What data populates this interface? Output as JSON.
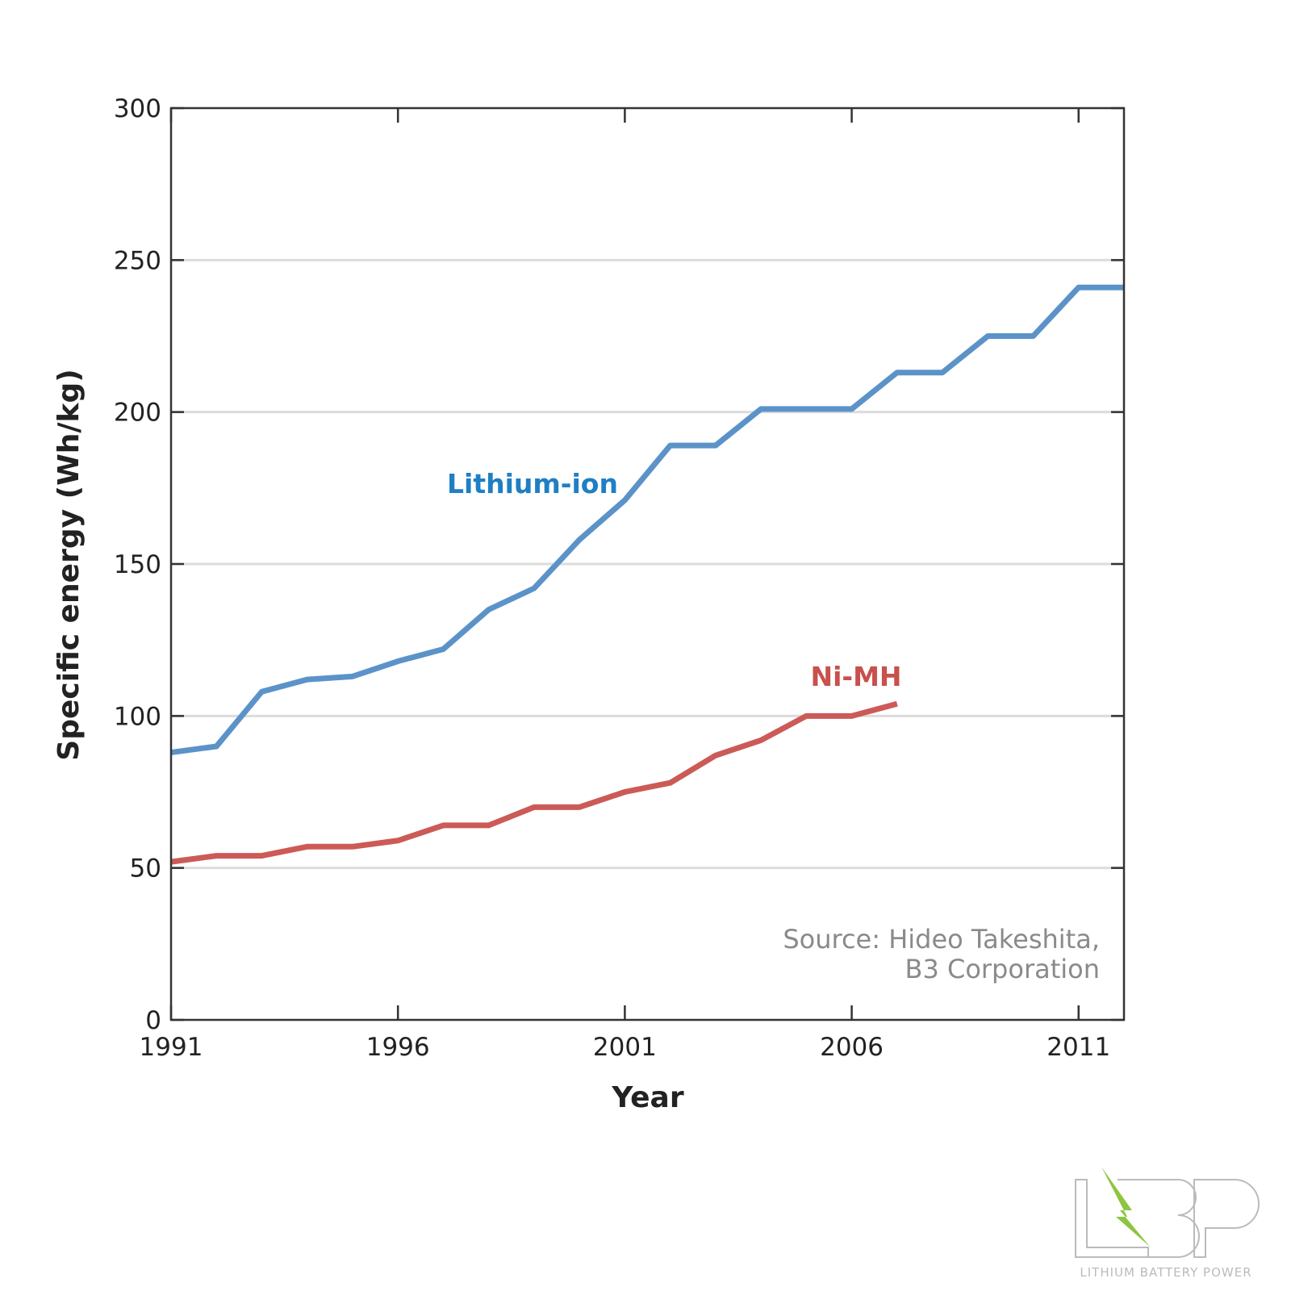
{
  "chart_data": {
    "type": "line",
    "title": "",
    "xlabel": "Year",
    "ylabel": "Specific energy (Wh/kg)",
    "xlim": [
      1991,
      2012
    ],
    "ylim": [
      0,
      300
    ],
    "x_ticks": [
      "1991",
      "1996",
      "2001",
      "2006",
      "2011"
    ],
    "y_ticks": [
      "0",
      "50",
      "100",
      "150",
      "200",
      "250",
      "300"
    ],
    "grid": "horizontal",
    "series": [
      {
        "name": "Lithium-ion",
        "color": "#5b93c9",
        "label_color": "#1f7fc4",
        "x": [
          1991,
          1992,
          1993,
          1994,
          1995,
          1996,
          1997,
          1998,
          1999,
          2000,
          2001,
          2002,
          2003,
          2004,
          2005,
          2006,
          2007,
          2008,
          2009,
          2010,
          2011,
          2012
        ],
        "values": [
          88,
          90,
          108,
          112,
          113,
          118,
          122,
          135,
          142,
          158,
          171,
          189,
          189,
          201,
          201,
          201,
          213,
          213,
          225,
          225,
          241,
          241
        ]
      },
      {
        "name": "Ni-MH",
        "color": "#cc5a57",
        "label_color": "#c8504d",
        "x": [
          1991,
          1992,
          1993,
          1994,
          1995,
          1996,
          1997,
          1998,
          1999,
          2000,
          2001,
          2002,
          2003,
          2004,
          2005,
          2006,
          2007
        ],
        "values": [
          52,
          54,
          54,
          57,
          57,
          59,
          64,
          64,
          70,
          70,
          75,
          78,
          87,
          92,
          100,
          100,
          104
        ]
      }
    ],
    "annotations": [
      "Source: Hideo Takeshita,",
      "B3 Corporation"
    ]
  },
  "logo": {
    "text": "LBP",
    "tagline": "LITHIUM BATTERY POWER",
    "accent": "#8cc63f"
  }
}
